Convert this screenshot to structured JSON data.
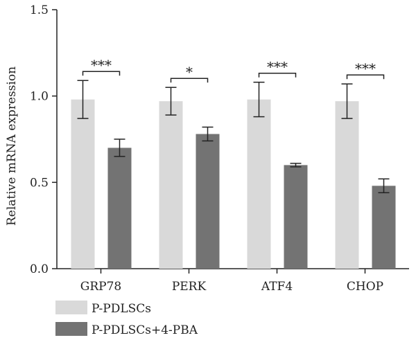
{
  "chart_data": {
    "type": "bar",
    "categories": [
      "GRP78",
      "PERK",
      "ATF4",
      "CHOP"
    ],
    "series": [
      {
        "name": "P-PDLSCs",
        "color": "#d9d9d9",
        "values": [
          0.98,
          0.97,
          0.98,
          0.97
        ],
        "errors": [
          0.11,
          0.08,
          0.1,
          0.1
        ]
      },
      {
        "name": "P-PDLSCs+4-PBA",
        "color": "#737373",
        "values": [
          0.7,
          0.78,
          0.6,
          0.48
        ],
        "errors": [
          0.05,
          0.04,
          0.01,
          0.04
        ]
      }
    ],
    "significance": [
      "***",
      "*",
      "***",
      "***"
    ],
    "ylabel": "Relative mRNA expression",
    "xlabel": "",
    "ylim": [
      0,
      1.5
    ],
    "yticks": [
      "0.0",
      "0.5",
      "1.0",
      "1.5"
    ],
    "grid": false,
    "legend_position": "bottom-left"
  }
}
